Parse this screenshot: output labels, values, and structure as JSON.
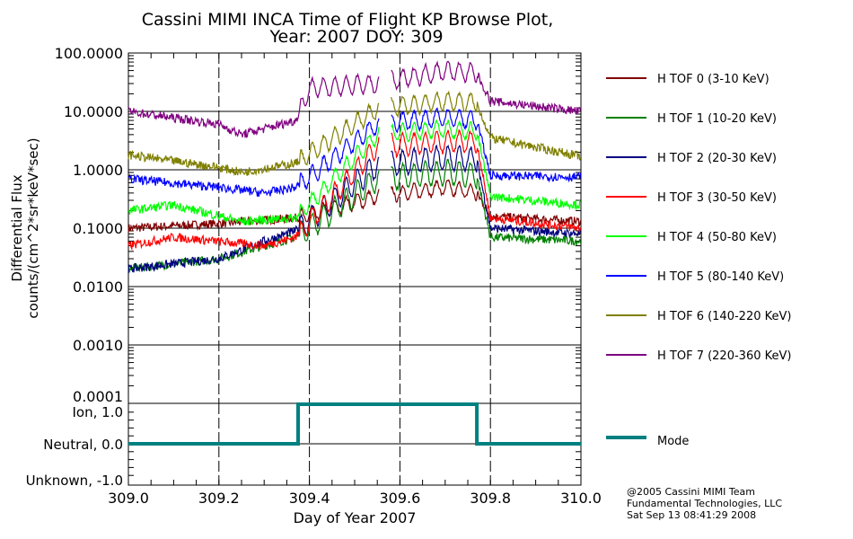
{
  "chart_data": {
    "type": "line",
    "title": "Cassini MIMI INCA Time of Flight KP Browse Plot,",
    "subtitle": "Year: 2007 DOY: 309",
    "xlabel": "Day of Year 2007",
    "ylabel_line1": "Differential Flux",
    "ylabel_line2": "counts/(cm^2*sr*keV*sec)",
    "xlim": [
      309.0,
      310.0
    ],
    "ylim": [
      0.0001,
      100
    ],
    "yscale": "log",
    "grid": true,
    "legend_placement": "right",
    "x_ticks": [
      309.0,
      309.2,
      309.4,
      309.6,
      309.8,
      310.0
    ],
    "x_tick_labels": [
      "309.0",
      "309.2",
      "309.4",
      "309.6",
      "309.8",
      "310.0"
    ],
    "y_ticks": [
      100,
      10,
      1,
      0.1,
      0.01,
      0.001,
      0.0001
    ],
    "y_tick_labels": [
      "100.0000",
      "10.0000",
      "1.0000",
      "0.1000",
      "0.0100",
      "0.0010",
      "0.0001"
    ],
    "data_gap": [
      309.555,
      309.58
    ],
    "active_interval": [
      309.375,
      309.77
    ],
    "oscillation_period_days": 0.025,
    "series": [
      {
        "name": "H TOF 0 (3-10 KeV)",
        "color": "#800000",
        "anchors": [
          [
            309.0,
            0.1
          ],
          [
            309.2,
            0.12
          ],
          [
            309.37,
            0.15
          ],
          [
            309.55,
            0.35
          ],
          [
            309.7,
            0.5
          ],
          [
            309.77,
            0.4
          ],
          [
            309.8,
            0.16
          ],
          [
            310.0,
            0.13
          ]
        ],
        "osc": 1.6
      },
      {
        "name": "H TOF 1 (10-20 KeV)",
        "color": "#008000",
        "anchors": [
          [
            309.0,
            0.02
          ],
          [
            309.2,
            0.03
          ],
          [
            309.3,
            0.05
          ],
          [
            309.37,
            0.07
          ],
          [
            309.55,
            0.7
          ],
          [
            309.7,
            0.9
          ],
          [
            309.77,
            0.8
          ],
          [
            309.8,
            0.07
          ],
          [
            310.0,
            0.06
          ]
        ],
        "osc": 2.2
      },
      {
        "name": "H TOF 2 (20-30 KeV)",
        "color": "#000080",
        "anchors": [
          [
            309.0,
            0.02
          ],
          [
            309.2,
            0.03
          ],
          [
            309.3,
            0.06
          ],
          [
            309.37,
            0.09
          ],
          [
            309.55,
            1.2
          ],
          [
            309.7,
            1.6
          ],
          [
            309.77,
            1.5
          ],
          [
            309.8,
            0.1
          ],
          [
            310.0,
            0.08
          ]
        ],
        "osc": 2.2
      },
      {
        "name": "H TOF 3 (30-50 KeV)",
        "color": "#ff0000",
        "anchors": [
          [
            309.0,
            0.05
          ],
          [
            309.1,
            0.07
          ],
          [
            309.3,
            0.05
          ],
          [
            309.37,
            0.07
          ],
          [
            309.55,
            2.5
          ],
          [
            309.7,
            3.0
          ],
          [
            309.77,
            3.0
          ],
          [
            309.8,
            0.15
          ],
          [
            310.0,
            0.1
          ]
        ],
        "osc": 2.0
      },
      {
        "name": "H TOF 4 (50-80 KeV)",
        "color": "#00ff00",
        "anchors": [
          [
            309.0,
            0.2
          ],
          [
            309.1,
            0.25
          ],
          [
            309.25,
            0.13
          ],
          [
            309.37,
            0.15
          ],
          [
            309.55,
            4
          ],
          [
            309.7,
            5
          ],
          [
            309.77,
            4.5
          ],
          [
            309.8,
            0.35
          ],
          [
            310.0,
            0.25
          ]
        ],
        "osc": 1.7
      },
      {
        "name": "H TOF 5 (80-140 KeV)",
        "color": "#0000ff",
        "anchors": [
          [
            309.0,
            0.7
          ],
          [
            309.2,
            0.5
          ],
          [
            309.3,
            0.4
          ],
          [
            309.37,
            0.5
          ],
          [
            309.55,
            6
          ],
          [
            309.7,
            8
          ],
          [
            309.77,
            7
          ],
          [
            309.8,
            0.8
          ],
          [
            310.0,
            0.75
          ]
        ],
        "osc": 1.8
      },
      {
        "name": "H TOF 6 (140-220 KeV)",
        "color": "#808000",
        "anchors": [
          [
            309.0,
            1.8
          ],
          [
            309.2,
            1.1
          ],
          [
            309.25,
            0.9
          ],
          [
            309.37,
            1.3
          ],
          [
            309.55,
            11
          ],
          [
            309.7,
            15
          ],
          [
            309.77,
            14
          ],
          [
            309.8,
            3.5
          ],
          [
            310.0,
            1.7
          ]
        ],
        "osc": 1.8
      },
      {
        "name": "H TOF 7 (220-360 KeV)",
        "color": "#800080",
        "anchors": [
          [
            309.0,
            10
          ],
          [
            309.2,
            6
          ],
          [
            309.25,
            4
          ],
          [
            309.37,
            7
          ],
          [
            309.4,
            25
          ],
          [
            309.55,
            30
          ],
          [
            309.7,
            50
          ],
          [
            309.77,
            45
          ],
          [
            309.8,
            15
          ],
          [
            310.0,
            10
          ]
        ],
        "osc": 1.8
      }
    ],
    "mode_panel": {
      "y_tick_labels": [
        "Ion, 1.0",
        "Neutral, 0.0",
        "Unknown, -1.0"
      ],
      "y_ticks": [
        1.0,
        0.0,
        -1.0
      ],
      "ylim": [
        -1.0,
        1.0
      ],
      "legend": "Mode",
      "color": "#008080",
      "steps": [
        [
          309.0,
          0
        ],
        [
          309.375,
          0
        ],
        [
          309.375,
          1
        ],
        [
          309.77,
          1
        ],
        [
          309.77,
          0
        ],
        [
          310.0,
          0
        ]
      ]
    }
  },
  "footer": {
    "line1": "@2005 Cassini MIMI Team",
    "line2": "Fundamental Technologies, LLC",
    "line3": "Sat Sep 13 08:41:29 2008"
  }
}
